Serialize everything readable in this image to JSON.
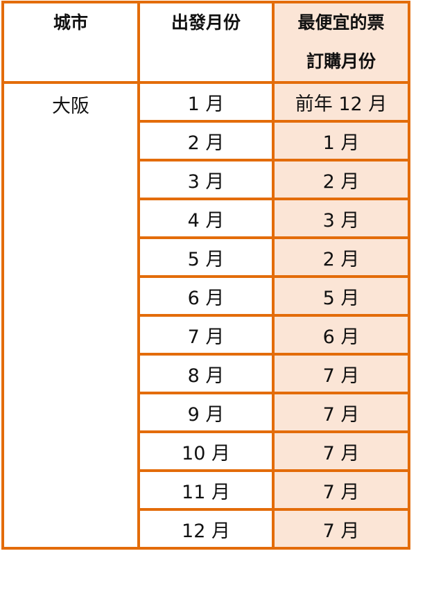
{
  "header": {
    "city": "城市",
    "depart_month": "出發月份",
    "cheapest_line1": "最便宜的票",
    "cheapest_line2": "訂購月份"
  },
  "city": "大阪",
  "rows": [
    {
      "depart": "1 月",
      "cheapest": "前年 12 月"
    },
    {
      "depart": "2 月",
      "cheapest": "1 月"
    },
    {
      "depart": "3 月",
      "cheapest": "2 月"
    },
    {
      "depart": "4 月",
      "cheapest": "3 月"
    },
    {
      "depart": "5 月",
      "cheapest": "2 月"
    },
    {
      "depart": "6 月",
      "cheapest": "5 月"
    },
    {
      "depart": "7 月",
      "cheapest": "6 月"
    },
    {
      "depart": "8 月",
      "cheapest": "7 月"
    },
    {
      "depart": "9 月",
      "cheapest": "7 月"
    },
    {
      "depart": "10 月",
      "cheapest": "7 月"
    },
    {
      "depart": "11 月",
      "cheapest": "7 月"
    },
    {
      "depart": "12 月",
      "cheapest": "7 月"
    }
  ],
  "colors": {
    "border": "#E36C0A",
    "highlight": "#FBE5D6"
  }
}
